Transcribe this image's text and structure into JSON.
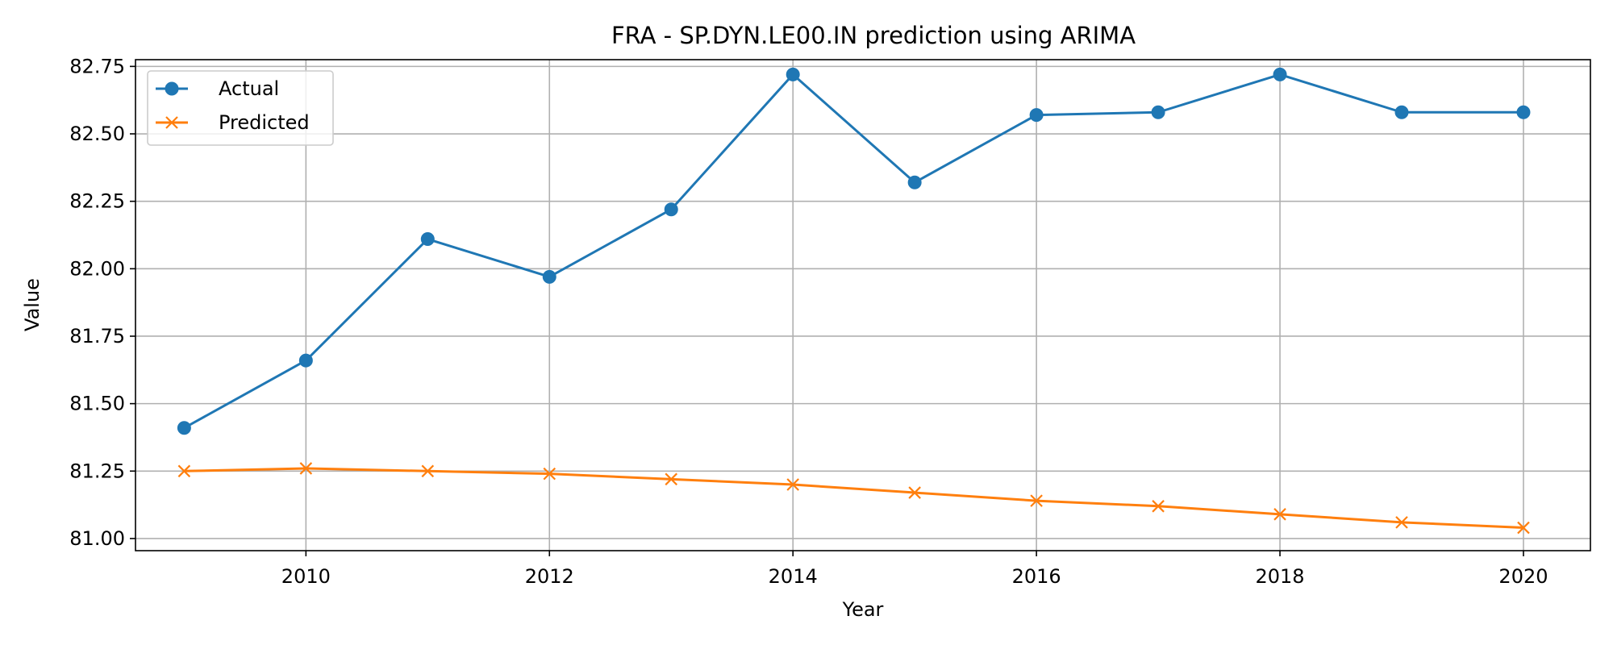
{
  "chart_data": {
    "type": "line",
    "title": "FRA - SP.DYN.LE00.IN prediction using ARIMA",
    "xlabel": "Year",
    "ylabel": "Value",
    "xlim": [
      2008.6,
      2020.55
    ],
    "ylim": [
      80.955,
      82.775
    ],
    "x_ticks": [
      2010,
      2012,
      2014,
      2016,
      2018,
      2020
    ],
    "y_ticks": [
      81.0,
      81.25,
      81.5,
      81.75,
      82.0,
      82.25,
      82.5,
      82.75
    ],
    "y_tick_labels": [
      "81.00",
      "81.25",
      "81.50",
      "81.75",
      "82.00",
      "82.25",
      "82.50",
      "82.75"
    ],
    "grid": true,
    "legend_position": "top-left",
    "x": [
      2009,
      2010,
      2011,
      2012,
      2013,
      2014,
      2015,
      2016,
      2017,
      2018,
      2019,
      2020
    ],
    "series": [
      {
        "name": "Actual",
        "color": "#1f77b4",
        "marker": "circle",
        "values": [
          81.41,
          81.66,
          82.11,
          81.97,
          82.22,
          82.72,
          82.32,
          82.57,
          82.58,
          82.72,
          82.58,
          82.58
        ]
      },
      {
        "name": "Predicted",
        "color": "#ff7f0e",
        "marker": "x",
        "values": [
          81.25,
          81.26,
          81.25,
          81.24,
          81.22,
          81.2,
          81.17,
          81.14,
          81.12,
          81.09,
          81.06,
          81.04
        ]
      }
    ]
  }
}
